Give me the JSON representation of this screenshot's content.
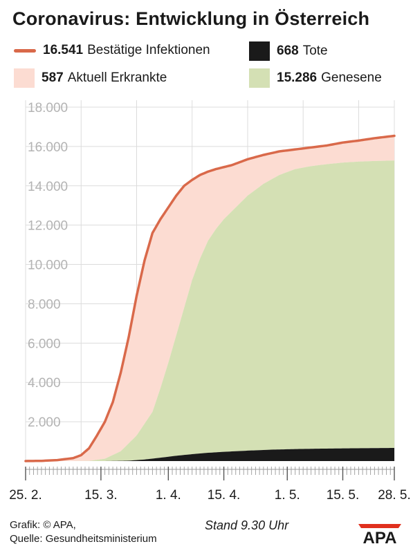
{
  "title": "Coronavirus: Entwicklung in Österreich",
  "legend": {
    "infected": {
      "value": "16.541",
      "label": "Bestätige Infektionen",
      "color": "#d9694a"
    },
    "deaths": {
      "value": "668",
      "label": "Tote",
      "color": "#1a1a1a"
    },
    "active": {
      "value": "587",
      "label": "Aktuell Erkrankte",
      "color": "#fcdcd2"
    },
    "recovered": {
      "value": "15.286",
      "label": "Genesene",
      "color": "#d4e0b4"
    }
  },
  "footer": {
    "credit": "Grafik: © APA,",
    "source": "Quelle: Gesundheitsministerium",
    "stand": "Stand 9.30 Uhr",
    "logo": "APA"
  },
  "chart_data": {
    "type": "area",
    "ylim": [
      0,
      18000
    ],
    "yticks": [
      2000,
      4000,
      6000,
      8000,
      10000,
      12000,
      14000,
      16000,
      18000
    ],
    "ytick_labels": [
      "2.000",
      "4.000",
      "6.000",
      "8.000",
      "10.000",
      "12.000",
      "14.000",
      "16.000",
      "18.000"
    ],
    "xlim": [
      "25.2.",
      "28.5."
    ],
    "x_labels": [
      {
        "day": 0,
        "label": "25. 2."
      },
      {
        "day": 19,
        "label": "15. 3."
      },
      {
        "day": 36,
        "label": "1. 4."
      },
      {
        "day": 50,
        "label": "15. 4."
      },
      {
        "day": 66,
        "label": "1. 5."
      },
      {
        "day": 80,
        "label": "15. 5."
      },
      {
        "day": 93,
        "label": "28. 5."
      }
    ],
    "grid": true,
    "series": [
      {
        "name": "Bestätige Infektionen",
        "x": [
          0,
          4,
          8,
          12,
          14,
          16,
          18,
          20,
          22,
          24,
          26,
          28,
          30,
          32,
          34,
          36,
          38,
          40,
          42,
          44,
          46,
          48,
          50,
          52,
          54,
          56,
          60,
          64,
          68,
          72,
          76,
          80,
          84,
          88,
          93
        ],
        "values": [
          2,
          10,
          50,
          150,
          300,
          650,
          1300,
          2000,
          3000,
          4500,
          6300,
          8400,
          10200,
          11600,
          12300,
          12900,
          13500,
          14000,
          14300,
          14550,
          14720,
          14850,
          14950,
          15050,
          15200,
          15350,
          15570,
          15750,
          15850,
          15950,
          16050,
          16200,
          16300,
          16420,
          16541
        ]
      },
      {
        "name": "Genesene",
        "x": [
          0,
          12,
          16,
          20,
          24,
          28,
          32,
          34,
          36,
          38,
          40,
          42,
          44,
          46,
          48,
          50,
          52,
          54,
          56,
          60,
          64,
          68,
          72,
          76,
          80,
          84,
          88,
          93
        ],
        "values": [
          0,
          0,
          9,
          120,
          500,
          1300,
          2500,
          3700,
          5000,
          6400,
          7800,
          9200,
          10300,
          11200,
          11800,
          12300,
          12700,
          13100,
          13500,
          14100,
          14550,
          14850,
          15000,
          15100,
          15180,
          15230,
          15260,
          15286
        ]
      },
      {
        "name": "Tote",
        "x": [
          0,
          20,
          26,
          30,
          34,
          38,
          42,
          46,
          50,
          56,
          62,
          68,
          74,
          80,
          86,
          93
        ],
        "values": [
          0,
          1,
          20,
          80,
          170,
          270,
          350,
          420,
          470,
          530,
          580,
          610,
          630,
          645,
          656,
          668
        ]
      }
    ]
  }
}
